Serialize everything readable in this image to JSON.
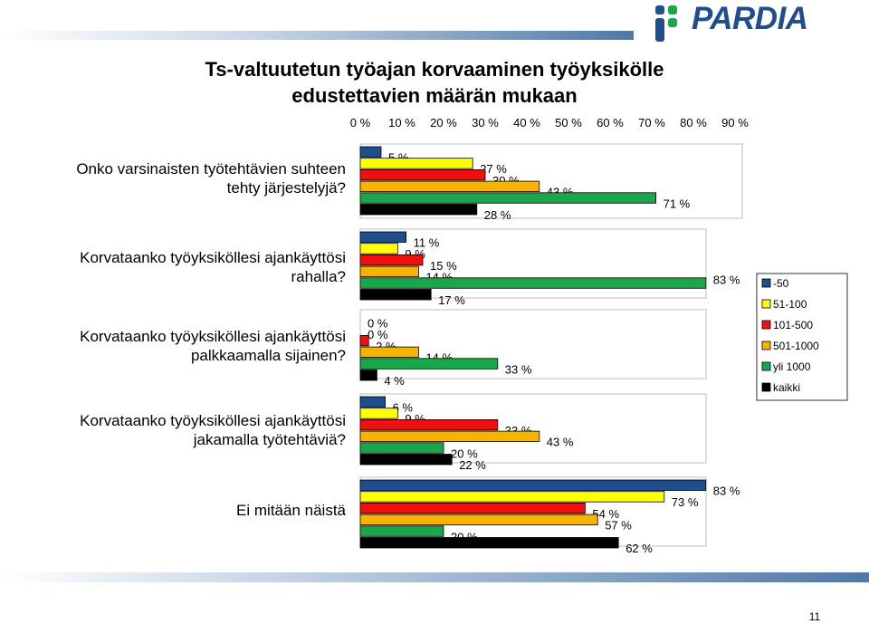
{
  "logo": {
    "text": "PARDIA"
  },
  "title_line1": "Ts-valtuutetun työajan korvaaminen työyksikölle",
  "title_line2": "edustettavien määrän mukaan",
  "page_number": "11",
  "colors": {
    "brand": "#1f4e8c"
  },
  "chart_data": {
    "type": "bar",
    "orientation": "horizontal",
    "x_ticks": [
      "0 %",
      "10 %",
      "20 %",
      "30 %",
      "40 %",
      "50 %",
      "60 %",
      "70 %",
      "80 %",
      "90 %"
    ],
    "xlim": [
      0,
      90
    ],
    "legend_position": "right",
    "categories": [
      {
        "line1": "Onko varsinaisten työtehtävien suhteen",
        "line2": "tehty järjestelyjä?"
      },
      {
        "line1": "Korvataanko työyksiköllesi ajankäyttösi",
        "line2": "rahalla?"
      },
      {
        "line1": "Korvataanko työyksiköllesi ajankäyttösi",
        "line2": "palkkaamalla sijainen?"
      },
      {
        "line1": "Korvataanko työyksiköllesi ajankäyttösi",
        "line2": "jakamalla työtehtäviä?"
      },
      {
        "line1": "Ei mitään näistä",
        "line2": ""
      }
    ],
    "series": [
      {
        "name": "-50",
        "color": "#1f4e8c",
        "values": [
          5,
          11,
          0,
          6,
          83
        ],
        "labels": [
          "5 %",
          "11 %",
          "0 %",
          "6 %",
          "83 %"
        ]
      },
      {
        "name": "51-100",
        "color": "#ffff00",
        "values": [
          27,
          9,
          0,
          9,
          73
        ],
        "labels": [
          "27 %",
          "9 %",
          "0 %",
          "9 %",
          "73 %"
        ]
      },
      {
        "name": "101-500",
        "color": "#ee1111",
        "values": [
          30,
          15,
          2,
          33,
          54
        ],
        "labels": [
          "30 %",
          "15 %",
          "2 %",
          "33 %",
          "54 %"
        ]
      },
      {
        "name": "501-1000",
        "color": "#f5b400",
        "values": [
          43,
          14,
          14,
          43,
          57
        ],
        "labels": [
          "43 %",
          "14 %",
          "14 %",
          "43 %",
          "57 %"
        ]
      },
      {
        "name": "yli 1000",
        "color": "#1aa64a",
        "values": [
          71,
          83,
          33,
          20,
          20
        ],
        "labels": [
          "71 %",
          "83 %",
          "33 %",
          "20 %",
          "20 %"
        ]
      },
      {
        "name": "kaikki",
        "color": "#000000",
        "values": [
          28,
          17,
          4,
          22,
          62
        ],
        "labels": [
          "28 %",
          "17 %",
          "4 %",
          "22 %",
          "62 %"
        ]
      }
    ]
  }
}
